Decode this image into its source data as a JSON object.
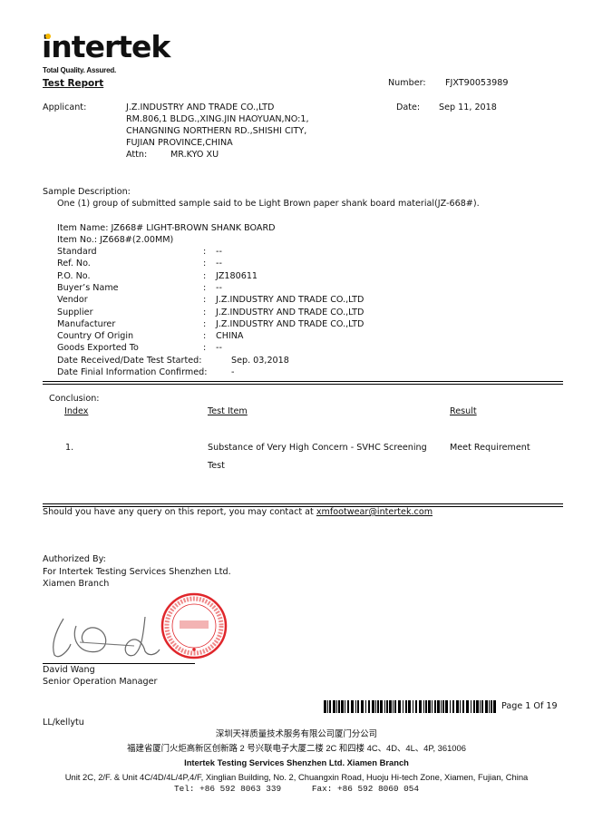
{
  "header": {
    "logo_text": "intertek",
    "tagline": "Total Quality. Assured.",
    "title": "Test Report",
    "number_label": "Number:",
    "number_value": "FJXT90053989",
    "date_label": "Date:",
    "date_value": "Sep 11, 2018"
  },
  "applicant": {
    "label": "Applicant:",
    "lines": [
      "J.Z.INDUSTRY AND TRADE CO.,LTD",
      "RM.806,1 BLDG.,XING.JIN HAOYUAN,NO:1,",
      "CHANGNING NORTHERN RD.,SHISHI CITY,",
      "FUJIAN PROVINCE,CHINA"
    ],
    "attn_label": "Attn:",
    "attn_value": "MR.KYO XU"
  },
  "sample": {
    "label": "Sample Description:",
    "text": "One (1) group of submitted sample said to be Light Brown paper shank board material(JZ-668#).",
    "item_name": "Item Name: JZ668# LIGHT-BROWN SHANK BOARD",
    "item_no": "Item No.: JZ668#(2.00MM)",
    "fields": [
      {
        "label": "Standard",
        "value": "--"
      },
      {
        "label": "Ref. No.",
        "value": "--"
      },
      {
        "label": "P.O. No.",
        "value": "JZ180611"
      },
      {
        "label": "Buyer’s Name",
        "value": "--"
      },
      {
        "label": "Vendor",
        "value": "J.Z.INDUSTRY AND TRADE CO.,LTD"
      },
      {
        "label": "Supplier",
        "value": "J.Z.INDUSTRY AND TRADE CO.,LTD"
      },
      {
        "label": "Manufacturer",
        "value": "J.Z.INDUSTRY AND TRADE CO.,LTD"
      },
      {
        "label": "Country Of Origin",
        "value": "CHINA"
      },
      {
        "label": "Goods Exported To",
        "value": "--"
      }
    ],
    "date_received_label": "Date Received/Date Test Started:",
    "date_received_value": "Sep. 03,2018",
    "date_confirmed_label": "Date Finial Information Confirmed:",
    "date_confirmed_value": "-"
  },
  "conclusion": {
    "label": "Conclusion:",
    "headers": {
      "index": "Index",
      "item": "Test Item",
      "result": "Result"
    },
    "rows": [
      {
        "index": "1.",
        "item_line1": "Substance of Very High Concern - SVHC Screening",
        "item_line2": "Test",
        "result": "Meet Requirement"
      }
    ]
  },
  "query": {
    "text": "Should you have any query on this report, you may contact at ",
    "email": "xmfootwear@intertek.com"
  },
  "authorized": {
    "label": "Authorized By:",
    "line1": "For Intertek Testing Services Shenzhen Ltd.",
    "line2": "Xiamen Branch",
    "name": "David Wang",
    "title": "Senior Operation Manager",
    "stamp_text": "INTERTEK TESTING SERVICES SHENZHEN LTD. XIAMEN BRANCH 厦门分公司"
  },
  "footer": {
    "page": "Page 1 Of 19",
    "ref": "LL/kellytu",
    "cn_name": "深圳天祥质量技术服务有限公司厦门分公司",
    "cn_address": "福建省厦门火炬高新区创新路 2 号兴联电子大厦二楼 2C 和四楼 4C、4D、4L、4P, 361006",
    "company": "Intertek Testing Services Shenzhen Ltd. Xiamen Branch",
    "address": "Unit 2C, 2/F. & Unit 4C/4D/4L/4P,4/F, Xinglian Building, No. 2, Chuangxin Road, Huoju Hi-tech Zone, Xiamen, Fujian, China",
    "contact": "Tel: +86 592 8063 339      Fax: +86 592 8060 054"
  },
  "colors": {
    "logo_dot": "#f5b800",
    "stamp": "#e0262b"
  }
}
